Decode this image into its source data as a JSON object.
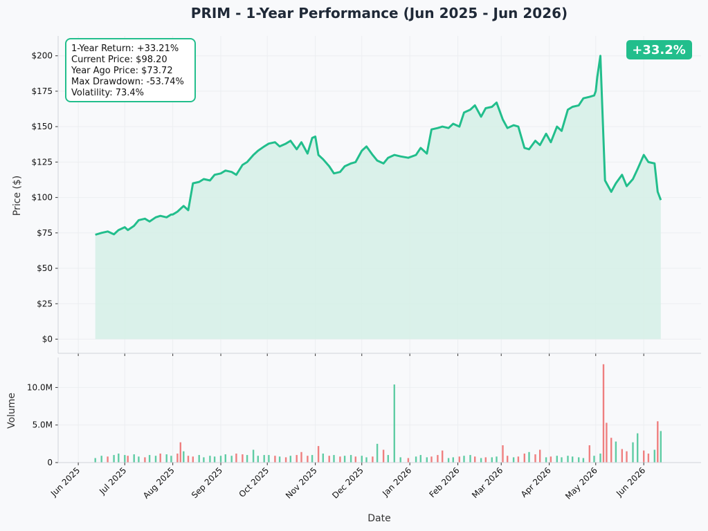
{
  "colors": {
    "price_line": "#22be8c",
    "price_fill": "#d5f0e6",
    "volume_up": "#5fcca4",
    "volume_down": "#ef7f7f",
    "badge_bg": "#22be8c",
    "grid": "#eceef1"
  },
  "chart_data": [
    {
      "type": "area",
      "title": "PRIM - 1-Year Performance (Jun 2025 - Jun 2026)",
      "ylabel": "Price ($)",
      "ylim": [
        -10,
        214
      ],
      "yticks": [
        "$0",
        "$25",
        "$50",
        "$75",
        "$100",
        "$125",
        "$150",
        "$175",
        "$200"
      ],
      "ytick_values": [
        0,
        25,
        50,
        75,
        100,
        125,
        150,
        175,
        200
      ],
      "grid": true,
      "stats_box": {
        "lines": [
          "1-Year Return: +33.21%",
          "Current Price: $98.20",
          "Year Ago Price: $73.72",
          "Max Drawdown: -53.74%",
          "Volatility: 73.4%"
        ],
        "placement": "top-left"
      },
      "badge": {
        "text": "+33.2%",
        "placement": "top-right"
      },
      "series": [
        {
          "x": [
            "2025-06-12",
            "2025-06-16",
            "2025-06-20",
            "2025-06-24",
            "2025-06-27",
            "2025-07-01",
            "2025-07-03",
            "2025-07-07",
            "2025-07-10",
            "2025-07-14",
            "2025-07-17",
            "2025-07-21",
            "2025-07-24",
            "2025-07-28",
            "2025-07-31",
            "2025-08-01",
            "2025-08-04",
            "2025-08-06",
            "2025-08-08",
            "2025-08-11",
            "2025-08-14",
            "2025-08-18",
            "2025-08-21",
            "2025-08-25",
            "2025-08-28",
            "2025-09-01",
            "2025-09-04",
            "2025-09-08",
            "2025-09-11",
            "2025-09-15",
            "2025-09-18",
            "2025-09-22",
            "2025-09-25",
            "2025-09-29",
            "2025-10-02",
            "2025-10-06",
            "2025-10-09",
            "2025-10-13",
            "2025-10-16",
            "2025-10-20",
            "2025-10-23",
            "2025-10-27",
            "2025-10-30",
            "2025-11-01",
            "2025-11-03",
            "2025-11-06",
            "2025-11-10",
            "2025-11-13",
            "2025-11-17",
            "2025-11-20",
            "2025-11-24",
            "2025-11-27",
            "2025-12-01",
            "2025-12-04",
            "2025-12-08",
            "2025-12-11",
            "2025-12-15",
            "2025-12-18",
            "2025-12-22",
            "2025-12-26",
            "2025-12-31",
            "2026-01-05",
            "2026-01-08",
            "2026-01-12",
            "2026-01-15",
            "2026-01-19",
            "2026-01-22",
            "2026-01-26",
            "2026-01-29",
            "2026-02-02",
            "2026-02-05",
            "2026-02-09",
            "2026-02-12",
            "2026-02-16",
            "2026-02-19",
            "2026-02-23",
            "2026-02-26",
            "2026-03-02",
            "2026-03-05",
            "2026-03-09",
            "2026-03-12",
            "2026-03-16",
            "2026-03-19",
            "2026-03-23",
            "2026-03-26",
            "2026-03-30",
            "2026-04-02",
            "2026-04-06",
            "2026-04-09",
            "2026-04-13",
            "2026-04-16",
            "2026-04-20",
            "2026-04-23",
            "2026-04-27",
            "2026-04-30",
            "2026-05-01",
            "2026-05-02",
            "2026-05-04",
            "2026-05-07",
            "2026-05-11",
            "2026-05-14",
            "2026-05-18",
            "2026-05-21",
            "2026-05-25",
            "2026-05-28",
            "2026-06-01",
            "2026-06-04",
            "2026-06-08",
            "2026-06-10",
            "2026-06-12"
          ],
          "values": [
            73.7,
            75,
            76,
            74,
            77,
            79,
            77,
            80,
            84,
            85,
            83,
            86,
            87,
            86,
            88,
            88,
            90,
            92,
            94,
            91,
            110,
            111,
            113,
            112,
            116,
            117,
            119,
            118,
            116,
            123,
            125,
            130,
            133,
            136,
            138,
            139,
            136,
            138,
            140,
            134,
            139,
            131,
            142,
            143,
            130,
            127,
            122,
            117,
            118,
            122,
            124,
            125,
            133,
            136,
            130,
            126,
            124,
            128,
            130,
            129,
            128,
            130,
            135,
            131,
            148,
            149,
            150,
            149,
            152,
            150,
            160,
            162,
            165,
            157,
            163,
            164,
            167,
            155,
            149,
            151,
            150,
            135,
            134,
            140,
            137,
            145,
            139,
            150,
            147,
            162,
            164,
            165,
            170,
            171,
            172,
            175,
            185,
            200,
            112,
            104,
            110,
            116,
            108,
            113,
            120,
            130,
            125,
            124,
            104,
            98.2
          ],
          "color_key": "price_line"
        }
      ]
    },
    {
      "type": "bar",
      "ylabel": "Volume",
      "xlabel": "Date",
      "ylim": [
        0,
        14000000
      ],
      "yticks": [
        "0",
        "5.0M",
        "10.0M"
      ],
      "ytick_values": [
        0,
        5000000,
        10000000
      ],
      "xticks": [
        "Jun 2025",
        "Jul 2025",
        "Aug 2025",
        "Sep 2025",
        "Oct 2025",
        "Nov 2025",
        "Dec 2025",
        "Jan 2026",
        "Feb 2026",
        "Mar 2026",
        "Apr 2026",
        "May 2026",
        "Jun 2026"
      ],
      "xtick_dates": [
        "2025-06-01",
        "2025-07-01",
        "2025-08-01",
        "2025-09-01",
        "2025-10-01",
        "2025-11-01",
        "2025-12-01",
        "2026-01-01",
        "2026-02-01",
        "2026-03-01",
        "2026-04-01",
        "2026-05-01",
        "2026-06-01"
      ],
      "date_range": [
        "2025-05-19",
        "2026-07-08"
      ],
      "series": [
        {
          "name": "",
          "x": [
            "2025-06-12",
            "2025-06-16",
            "2025-06-20",
            "2025-06-24",
            "2025-06-27",
            "2025-07-01",
            "2025-07-03",
            "2025-07-07",
            "2025-07-10",
            "2025-07-14",
            "2025-07-17",
            "2025-07-21",
            "2025-07-24",
            "2025-07-28",
            "2025-07-31",
            "2025-08-04",
            "2025-08-06",
            "2025-08-08",
            "2025-08-11",
            "2025-08-14",
            "2025-08-18",
            "2025-08-21",
            "2025-08-25",
            "2025-08-28",
            "2025-09-01",
            "2025-09-04",
            "2025-09-08",
            "2025-09-11",
            "2025-09-15",
            "2025-09-18",
            "2025-09-22",
            "2025-09-25",
            "2025-09-29",
            "2025-10-02",
            "2025-10-06",
            "2025-10-09",
            "2025-10-13",
            "2025-10-16",
            "2025-10-20",
            "2025-10-23",
            "2025-10-27",
            "2025-10-30",
            "2025-11-03",
            "2025-11-06",
            "2025-11-10",
            "2025-11-13",
            "2025-11-17",
            "2025-11-20",
            "2025-11-24",
            "2025-11-27",
            "2025-12-01",
            "2025-12-04",
            "2025-12-08",
            "2025-12-11",
            "2025-12-15",
            "2025-12-18",
            "2025-12-22",
            "2025-12-26",
            "2025-12-31",
            "2026-01-05",
            "2026-01-08",
            "2026-01-12",
            "2026-01-15",
            "2026-01-19",
            "2026-01-22",
            "2026-01-26",
            "2026-01-29",
            "2026-02-02",
            "2026-02-05",
            "2026-02-09",
            "2026-02-12",
            "2026-02-16",
            "2026-02-19",
            "2026-02-23",
            "2026-02-26",
            "2026-03-02",
            "2026-03-05",
            "2026-03-09",
            "2026-03-12",
            "2026-03-16",
            "2026-03-19",
            "2026-03-23",
            "2026-03-26",
            "2026-03-30",
            "2026-04-02",
            "2026-04-06",
            "2026-04-09",
            "2026-04-13",
            "2026-04-16",
            "2026-04-20",
            "2026-04-23",
            "2026-04-27",
            "2026-04-30",
            "2026-05-04",
            "2026-05-06",
            "2026-05-08",
            "2026-05-11",
            "2026-05-14",
            "2026-05-18",
            "2026-05-21",
            "2026-05-25",
            "2026-05-28",
            "2026-06-01",
            "2026-06-04",
            "2026-06-08",
            "2026-06-10",
            "2026-06-12"
          ],
          "values": [
            600000,
            900000,
            800000,
            1000000,
            1200000,
            1000000,
            900000,
            1100000,
            800000,
            700000,
            1000000,
            900000,
            1200000,
            1100000,
            900000,
            1200000,
            2700000,
            1500000,
            900000,
            800000,
            1000000,
            700000,
            900000,
            800000,
            900000,
            1100000,
            900000,
            1200000,
            1100000,
            1000000,
            1700000,
            900000,
            1000000,
            1000000,
            900000,
            800000,
            700000,
            900000,
            1000000,
            1400000,
            900000,
            1000000,
            2200000,
            1200000,
            900000,
            1000000,
            800000,
            900000,
            1000000,
            800000,
            900000,
            700000,
            800000,
            2500000,
            1700000,
            1000000,
            10400000,
            700000,
            600000,
            800000,
            1000000,
            700000,
            800000,
            1000000,
            1600000,
            600000,
            700000,
            800000,
            900000,
            1000000,
            800000,
            600000,
            700000,
            700000,
            800000,
            2300000,
            900000,
            700000,
            800000,
            1200000,
            1400000,
            1100000,
            1700000,
            700000,
            800000,
            900000,
            700000,
            900000,
            800000,
            700000,
            600000,
            2300000,
            900000,
            1200000,
            13100000,
            5300000,
            3300000,
            2800000,
            1800000,
            1500000,
            2700000,
            3900000,
            1600000,
            1200000,
            1700000,
            5500000,
            4200000
          ],
          "down": [
            false,
            false,
            true,
            false,
            false,
            false,
            true,
            false,
            false,
            true,
            false,
            false,
            true,
            false,
            false,
            true,
            true,
            false,
            true,
            true,
            false,
            false,
            false,
            false,
            false,
            false,
            false,
            true,
            true,
            false,
            false,
            false,
            false,
            false,
            true,
            false,
            true,
            false,
            true,
            true,
            true,
            false,
            true,
            false,
            true,
            false,
            true,
            false,
            false,
            true,
            false,
            false,
            true,
            false,
            true,
            false,
            false,
            false,
            true,
            false,
            false,
            false,
            true,
            true,
            true,
            false,
            false,
            true,
            false,
            false,
            true,
            false,
            true,
            false,
            false,
            true,
            true,
            false,
            true,
            true,
            false,
            true,
            true,
            false,
            true,
            false,
            false,
            false,
            false,
            false,
            false,
            true,
            false,
            false,
            true,
            true,
            true,
            false,
            true,
            true,
            false,
            false,
            true,
            true,
            false,
            true,
            false
          ]
        }
      ]
    }
  ]
}
